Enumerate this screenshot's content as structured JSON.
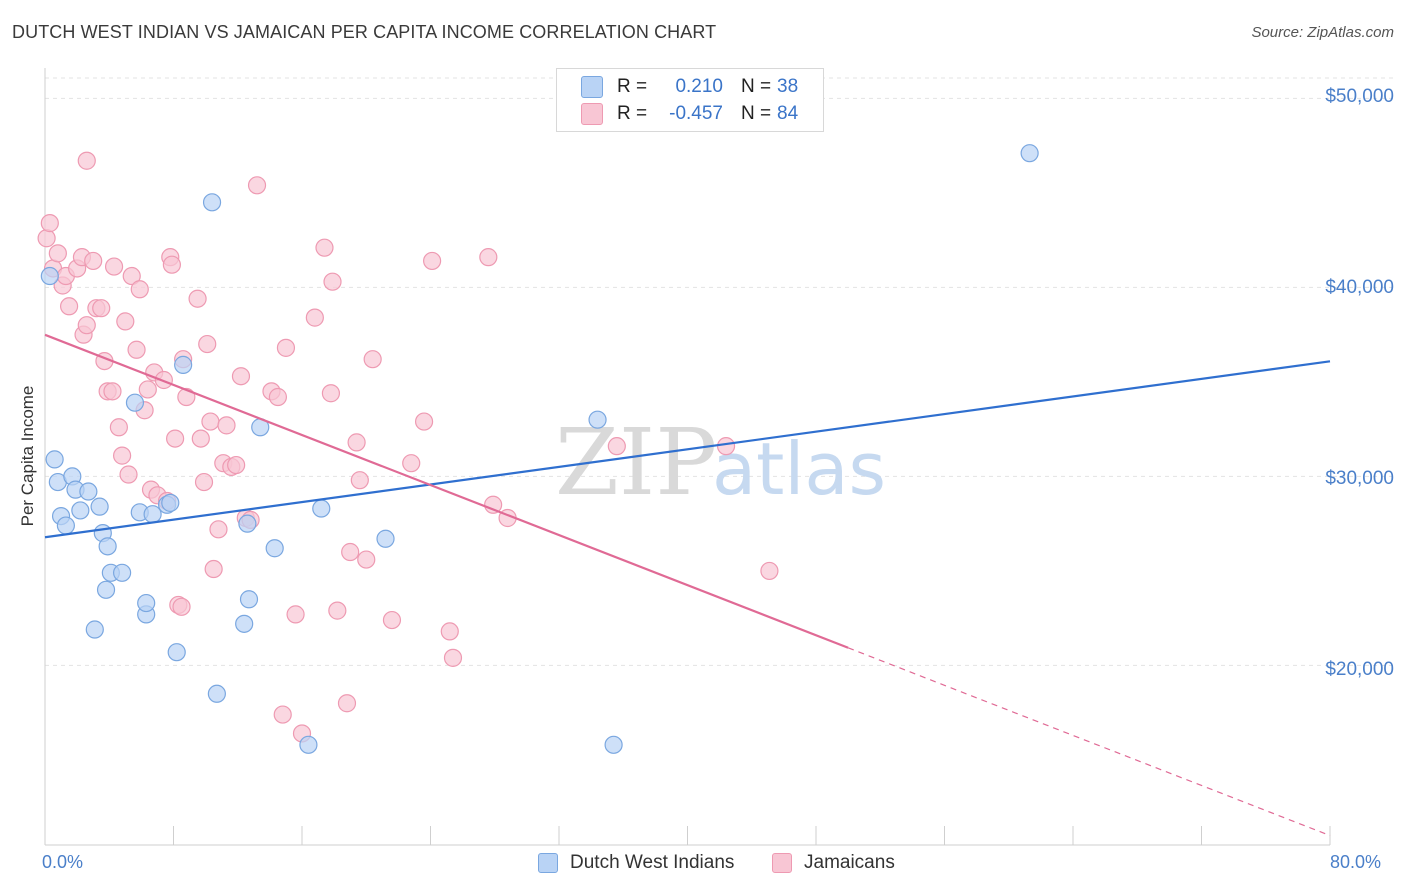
{
  "title": "DUTCH WEST INDIAN VS JAMAICAN PER CAPITA INCOME CORRELATION CHART",
  "source": "Source: ZipAtlas.com",
  "watermark": {
    "zip": "ZIP",
    "atlas": "atlas"
  },
  "colors": {
    "blue_fill": "#b9d3f5",
    "blue_stroke": "#7aa7e0",
    "blue_line": "#2f6fcf",
    "pink_fill": "#f8c6d4",
    "pink_stroke": "#ee9ab2",
    "pink_line": "#e06a95",
    "grid": "#e3e3e3",
    "axis_text": "#4a7fc9"
  },
  "legend": {
    "rows": [
      {
        "r_label": "R =",
        "r_value": "0.210",
        "n_label": "N =",
        "n_value": "38",
        "swatch": "blue"
      },
      {
        "r_label": "R =",
        "r_value": "-0.457",
        "n_label": "N =",
        "n_value": "84",
        "swatch": "pink"
      }
    ]
  },
  "bottom_legend": {
    "series1": "Dutch West Indians",
    "series2": "Jamaicans"
  },
  "chart_data": {
    "type": "scatter",
    "title": "DUTCH WEST INDIAN VS JAMAICAN PER CAPITA INCOME CORRELATION CHART",
    "xlabel": "",
    "ylabel": "Per Capita Income",
    "xlim": [
      0,
      80
    ],
    "ylim": [
      10500,
      51500
    ],
    "x_tick_labels": [
      "0.0%",
      "80.0%"
    ],
    "y_ticks": [
      20000,
      30000,
      40000,
      50000
    ],
    "y_tick_labels": [
      "$20,000",
      "$30,000",
      "$40,000",
      "$50,000"
    ],
    "grid": true,
    "series": [
      {
        "name": "Dutch West Indians",
        "color": "blue",
        "trend": {
          "x0": 0,
          "y0": 26780,
          "x1": 80,
          "y1": 36090,
          "dashed_from": null
        },
        "points": [
          [
            0.3,
            40600
          ],
          [
            0.6,
            30900
          ],
          [
            0.8,
            29700
          ],
          [
            1.0,
            27900
          ],
          [
            1.3,
            27400
          ],
          [
            1.7,
            30000
          ],
          [
            1.9,
            29300
          ],
          [
            2.2,
            28200
          ],
          [
            2.7,
            29200
          ],
          [
            3.4,
            28400
          ],
          [
            3.6,
            27000
          ],
          [
            3.9,
            26300
          ],
          [
            4.1,
            24900
          ],
          [
            4.8,
            24900
          ],
          [
            3.8,
            24000
          ],
          [
            3.1,
            21900
          ],
          [
            5.6,
            33900
          ],
          [
            5.9,
            28100
          ],
          [
            6.3,
            22700
          ],
          [
            6.3,
            23300
          ],
          [
            6.7,
            28000
          ],
          [
            7.6,
            28500
          ],
          [
            7.8,
            28600
          ],
          [
            8.2,
            20700
          ],
          [
            8.6,
            35900
          ],
          [
            10.4,
            44500
          ],
          [
            10.7,
            18500
          ],
          [
            12.6,
            27500
          ],
          [
            12.7,
            23500
          ],
          [
            12.4,
            22200
          ],
          [
            13.4,
            32600
          ],
          [
            14.3,
            26200
          ],
          [
            16.4,
            15800
          ],
          [
            17.2,
            28300
          ],
          [
            21.2,
            26700
          ],
          [
            34.4,
            33000
          ],
          [
            35.4,
            15800
          ],
          [
            61.3,
            47100
          ]
        ]
      },
      {
        "name": "Jamaicans",
        "color": "pink",
        "trend": {
          "x0": 0,
          "y0": 37490,
          "x1": 80,
          "y1": 11000,
          "dashed_from": 50
        },
        "points": [
          [
            0.1,
            42600
          ],
          [
            0.3,
            43400
          ],
          [
            0.5,
            41000
          ],
          [
            0.8,
            41800
          ],
          [
            1.1,
            40100
          ],
          [
            1.3,
            40600
          ],
          [
            1.5,
            39000
          ],
          [
            2.0,
            41000
          ],
          [
            2.3,
            41600
          ],
          [
            2.4,
            37500
          ],
          [
            2.6,
            38000
          ],
          [
            2.6,
            46700
          ],
          [
            3.0,
            41400
          ],
          [
            3.2,
            38900
          ],
          [
            3.5,
            38900
          ],
          [
            3.7,
            36100
          ],
          [
            3.9,
            34500
          ],
          [
            4.2,
            34500
          ],
          [
            4.3,
            41100
          ],
          [
            4.6,
            32600
          ],
          [
            4.8,
            31100
          ],
          [
            5.0,
            38200
          ],
          [
            5.2,
            30100
          ],
          [
            5.4,
            40600
          ],
          [
            5.7,
            36700
          ],
          [
            5.9,
            39900
          ],
          [
            6.2,
            33500
          ],
          [
            6.4,
            34600
          ],
          [
            6.6,
            29300
          ],
          [
            6.8,
            35500
          ],
          [
            7.0,
            29000
          ],
          [
            7.4,
            35100
          ],
          [
            7.6,
            28700
          ],
          [
            7.8,
            41600
          ],
          [
            7.9,
            41200
          ],
          [
            8.1,
            32000
          ],
          [
            8.3,
            23200
          ],
          [
            8.5,
            23100
          ],
          [
            8.6,
            36200
          ],
          [
            8.8,
            34200
          ],
          [
            9.5,
            39400
          ],
          [
            9.7,
            32000
          ],
          [
            9.9,
            29700
          ],
          [
            10.1,
            37000
          ],
          [
            10.3,
            32900
          ],
          [
            10.5,
            25100
          ],
          [
            10.8,
            27200
          ],
          [
            11.1,
            30700
          ],
          [
            11.3,
            32700
          ],
          [
            11.6,
            30500
          ],
          [
            11.9,
            30600
          ],
          [
            12.2,
            35300
          ],
          [
            12.5,
            27800
          ],
          [
            12.8,
            27700
          ],
          [
            13.2,
            45400
          ],
          [
            14.1,
            34500
          ],
          [
            14.5,
            34200
          ],
          [
            14.8,
            17400
          ],
          [
            15.0,
            36800
          ],
          [
            15.6,
            22700
          ],
          [
            16.0,
            16400
          ],
          [
            16.8,
            38400
          ],
          [
            17.4,
            42100
          ],
          [
            17.8,
            34400
          ],
          [
            17.9,
            40300
          ],
          [
            18.2,
            22900
          ],
          [
            18.8,
            18000
          ],
          [
            19.0,
            26000
          ],
          [
            19.4,
            31800
          ],
          [
            19.6,
            29800
          ],
          [
            20.0,
            25600
          ],
          [
            20.4,
            36200
          ],
          [
            21.6,
            22400
          ],
          [
            22.8,
            30700
          ],
          [
            23.6,
            32900
          ],
          [
            24.1,
            41400
          ],
          [
            25.2,
            21800
          ],
          [
            25.4,
            20400
          ],
          [
            27.6,
            41600
          ],
          [
            27.9,
            28500
          ],
          [
            28.8,
            27800
          ],
          [
            35.6,
            31600
          ],
          [
            42.4,
            31600
          ],
          [
            45.1,
            25000
          ]
        ]
      }
    ]
  }
}
